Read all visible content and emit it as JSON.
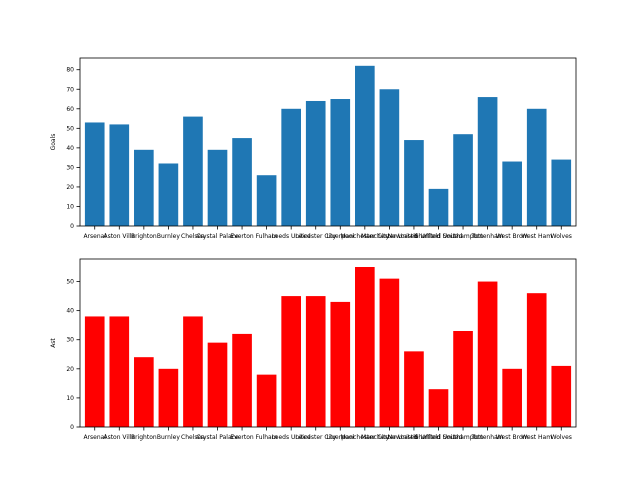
{
  "chart_data": [
    {
      "type": "bar",
      "categories": [
        "Arsenal",
        "Aston Villa",
        "Brighton",
        "Burnley",
        "Chelsea",
        "Crystal Palace",
        "Everton",
        "Fulham",
        "Leeds United",
        "Leicester City",
        "Liverpool",
        "Manchester City",
        "Manchester United",
        "Newcastle United",
        "Sheffield United",
        "Southampton",
        "Tottenham",
        "West Brom",
        "West Ham",
        "Wolves"
      ],
      "values": [
        53,
        52,
        39,
        32,
        56,
        39,
        45,
        26,
        60,
        64,
        65,
        82,
        70,
        44,
        19,
        47,
        66,
        33,
        60,
        34
      ],
      "color": "#1f77b4",
      "title": "",
      "xlabel": "",
      "ylabel": "Goals",
      "ylim": [
        0,
        86
      ],
      "yticks": [
        0,
        10,
        20,
        30,
        40,
        50,
        60,
        70,
        80
      ],
      "grid": false
    },
    {
      "type": "bar",
      "categories": [
        "Arsenal",
        "Aston Villa",
        "Brighton",
        "Burnley",
        "Chelsea",
        "Crystal Palace",
        "Everton",
        "Fulham",
        "Leeds United",
        "Leicester City",
        "Liverpool",
        "Manchester City",
        "Manchester United",
        "Newcastle United",
        "Sheffield United",
        "Southampton",
        "Tottenham",
        "West Brom",
        "West Ham",
        "Wolves"
      ],
      "values": [
        38,
        38,
        24,
        20,
        38,
        29,
        32,
        18,
        45,
        45,
        43,
        55,
        51,
        26,
        13,
        33,
        50,
        20,
        46,
        21
      ],
      "color": "#ff0000",
      "title": "",
      "xlabel": "",
      "ylabel": "Ast",
      "ylim": [
        0,
        57.75
      ],
      "yticks": [
        0,
        10,
        20,
        30,
        40,
        50
      ],
      "grid": false
    }
  ]
}
